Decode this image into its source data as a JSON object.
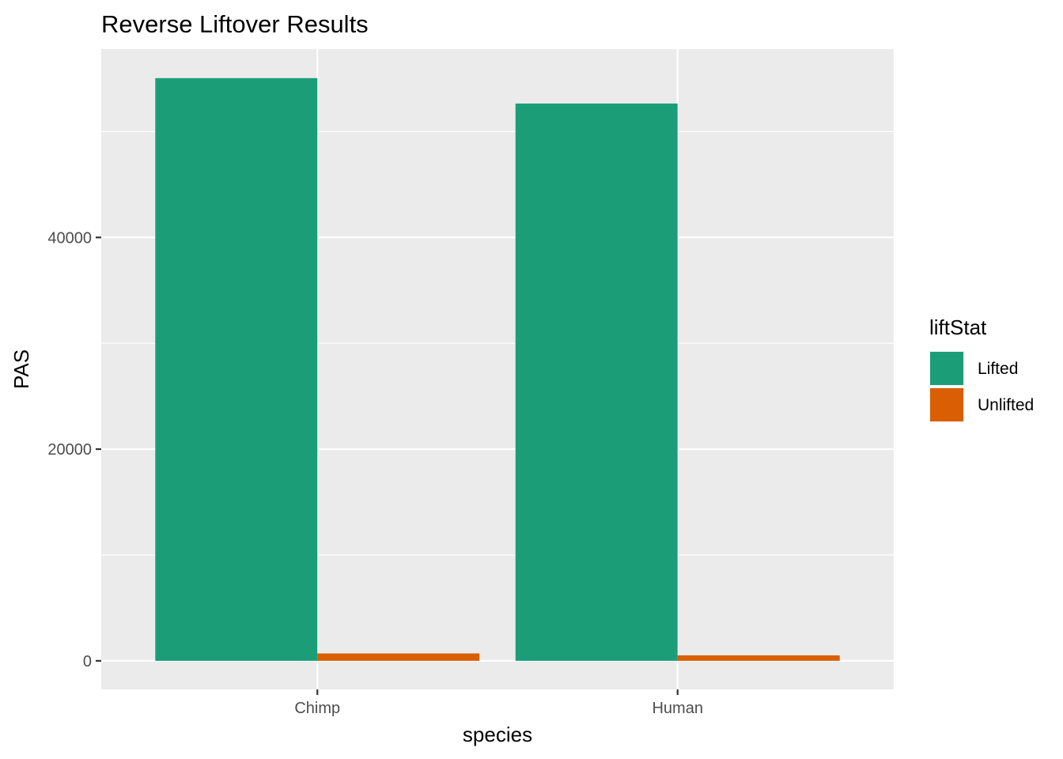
{
  "chart_data": {
    "type": "bar",
    "title": "Reverse Liftover Results",
    "xlabel": "species",
    "ylabel": "PAS",
    "categories": [
      "Chimp",
      "Human"
    ],
    "series": [
      {
        "name": "Lifted",
        "values": [
          55050,
          52650
        ],
        "color": "#1b9e77"
      },
      {
        "name": "Unlifted",
        "values": [
          700,
          520
        ],
        "color": "#d95f02"
      }
    ],
    "ylim": [
      -2700,
      57800
    ],
    "yticks": [
      0,
      20000,
      40000
    ],
    "yticks_minor": [
      10000,
      30000,
      50000
    ],
    "ytick_labels": [
      "0",
      "20000",
      "40000"
    ],
    "grid": true,
    "legend": {
      "title": "liftStat",
      "placement": "right",
      "items": [
        "Lifted",
        "Unlifted"
      ]
    },
    "colors": {
      "panel_background": "#ebebeb",
      "grid": "#ffffff",
      "tick_text": "#4d4d4d",
      "tick_mark": "#333333"
    }
  }
}
